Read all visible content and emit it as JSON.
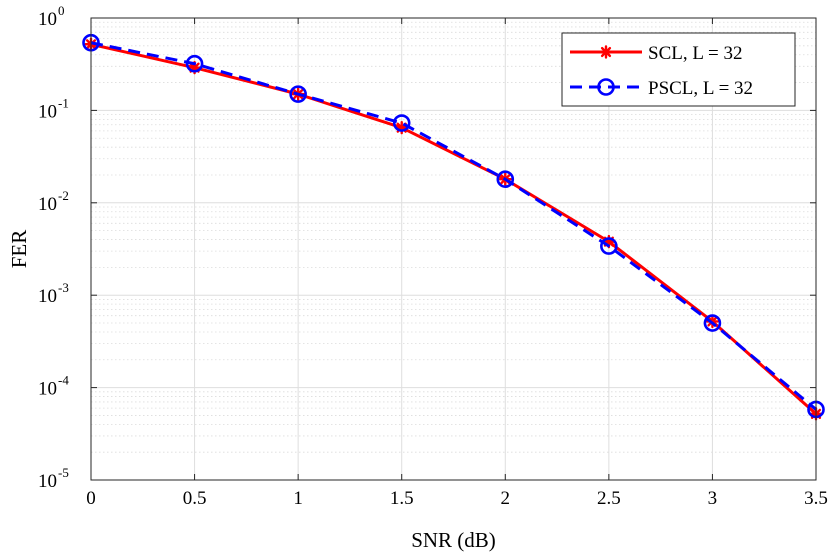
{
  "chart_data": {
    "type": "line",
    "title": "",
    "xlabel": "SNR (dB)",
    "ylabel": "FER",
    "xlim": [
      0,
      3.5
    ],
    "ylim": [
      1e-05,
      1
    ],
    "yscale": "log",
    "grid": true,
    "minor_grid": true,
    "legend_position": "top-right",
    "x_ticks": [
      0,
      0.5,
      1,
      1.5,
      2,
      2.5,
      3,
      3.5
    ],
    "x_tick_labels": [
      "0",
      "0.5",
      "1",
      "1.5",
      "2",
      "2.5",
      "3",
      "3.5"
    ],
    "y_tick_exponents": [
      0,
      -1,
      -2,
      -3,
      -4,
      -5
    ],
    "y_tick_base": "10",
    "x": [
      0,
      0.5,
      1,
      1.5,
      2,
      2.5,
      3,
      3.5
    ],
    "series": [
      {
        "name": "SCL, L = 32",
        "color": "#ff0000",
        "line_style": "solid",
        "marker": "asterisk",
        "values": [
          0.52,
          0.29,
          0.15,
          0.065,
          0.018,
          0.0038,
          0.00052,
          5.2e-05
        ]
      },
      {
        "name": "PSCL, L = 32",
        "color": "#0000ff",
        "line_style": "dashed",
        "marker": "circle",
        "values": [
          0.54,
          0.32,
          0.15,
          0.073,
          0.018,
          0.0034,
          0.0005,
          5.8e-05
        ]
      }
    ]
  }
}
